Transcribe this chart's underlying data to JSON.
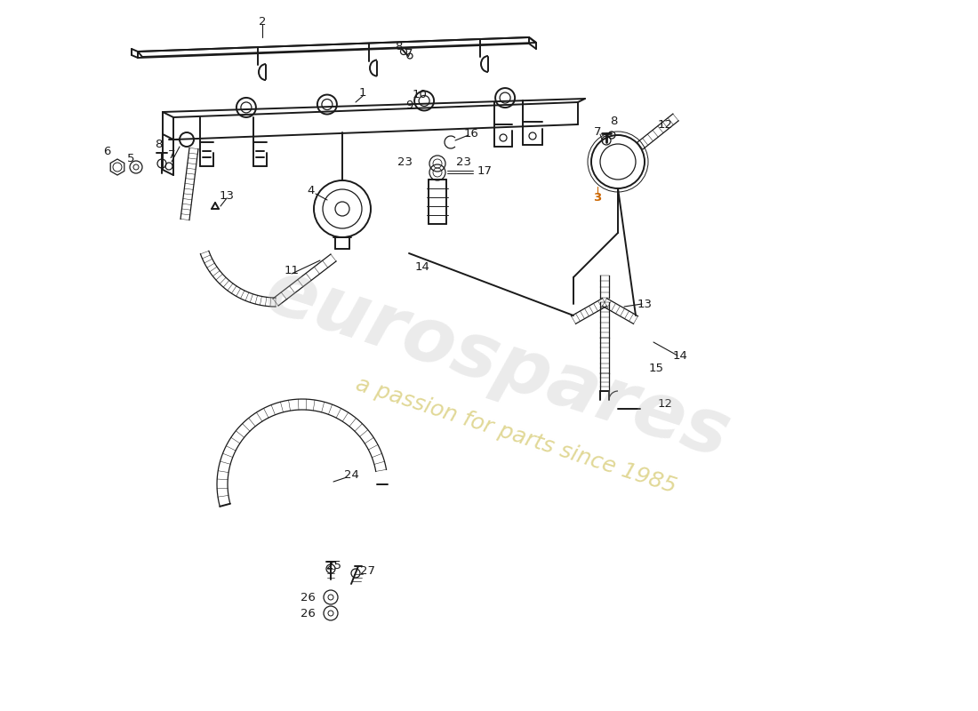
{
  "bg_color": "#ffffff",
  "draw_color": "#1a1a1a",
  "watermark1": "eurospares",
  "watermark2": "a passion for parts since 1985",
  "watermark1_color": "#b8b8b8",
  "watermark2_color": "#c8b840",
  "label_fontsize": 9.5
}
